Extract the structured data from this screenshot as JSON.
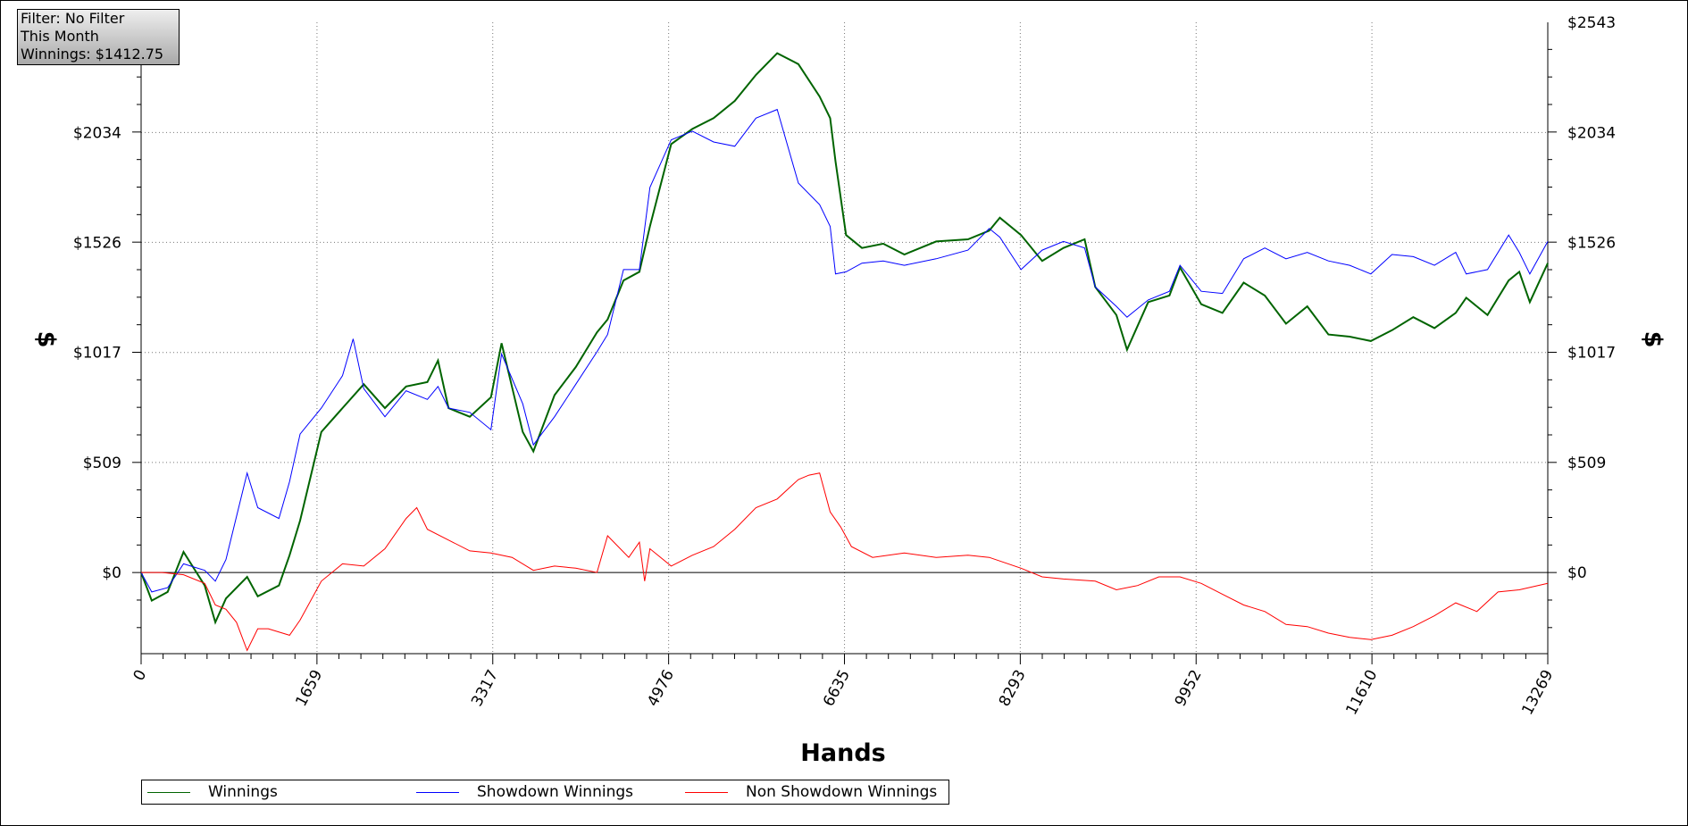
{
  "info_box": {
    "filter": "Filter: No Filter",
    "period": "This Month",
    "winnings": "Winnings: $1412.75"
  },
  "legend": [
    {
      "name": "Winnings",
      "color": "#006400"
    },
    {
      "name": "Showdown Winnings",
      "color": "#0000ff"
    },
    {
      "name": "Non Showdown Winnings",
      "color": "#ff0000"
    }
  ],
  "chart_data": {
    "type": "line",
    "xlabel": "Hands",
    "ylabel": "$",
    "xlim": [
      0,
      13269
    ],
    "ylim": [
      -375,
      2543
    ],
    "x_ticks": [
      0,
      1659,
      3317,
      4976,
      6635,
      8293,
      9952,
      11610,
      13269
    ],
    "x_tick_labels": [
      "0",
      "1659",
      "3317",
      "4976",
      "6635",
      "8293",
      "9952",
      "11610",
      "13269"
    ],
    "y_ticks": [
      0,
      509,
      1017,
      1526,
      2034,
      2543
    ],
    "y_tick_labels": [
      "$0",
      "$509",
      "$1017",
      "$1526",
      "$2034",
      "$2543"
    ],
    "grid": true,
    "legend_position": "bottom-left",
    "series": [
      {
        "name": "Winnings",
        "color": "#006400",
        "x": [
          0,
          100,
          250,
          400,
          600,
          700,
          800,
          1000,
          1100,
          1300,
          1400,
          1500,
          1700,
          1900,
          2100,
          2300,
          2500,
          2700,
          2800,
          2900,
          3100,
          3300,
          3400,
          3600,
          3700,
          3900,
          4100,
          4300,
          4400,
          4550,
          4700,
          4800,
          5000,
          5200,
          5400,
          5600,
          5800,
          6000,
          6200,
          6400,
          6500,
          6550,
          6650,
          6800,
          7000,
          7200,
          7500,
          7800,
          8000,
          8100,
          8300,
          8500,
          8700,
          8900,
          9000,
          9200,
          9300,
          9500,
          9700,
          9800,
          10000,
          10200,
          10400,
          10600,
          10800,
          11000,
          11200,
          11400,
          11600,
          11800,
          12000,
          12200,
          12400,
          12500,
          12700,
          12900,
          13000,
          13100,
          13269
        ],
        "y": [
          0,
          -130,
          -90,
          95,
          -60,
          -230,
          -120,
          -20,
          -110,
          -60,
          80,
          240,
          650,
          760,
          870,
          760,
          860,
          880,
          980,
          760,
          720,
          810,
          1060,
          650,
          560,
          820,
          950,
          1110,
          1170,
          1350,
          1390,
          1600,
          1980,
          2050,
          2100,
          2180,
          2300,
          2400,
          2350,
          2200,
          2100,
          1900,
          1560,
          1500,
          1520,
          1470,
          1530,
          1540,
          1580,
          1640,
          1560,
          1440,
          1500,
          1540,
          1320,
          1190,
          1030,
          1250,
          1280,
          1410,
          1240,
          1200,
          1340,
          1280,
          1150,
          1230,
          1100,
          1090,
          1070,
          1120,
          1180,
          1130,
          1200,
          1270,
          1190,
          1350,
          1390,
          1250,
          1430
        ]
      },
      {
        "name": "Showdown Winnings",
        "color": "#0000ff",
        "x": [
          0,
          100,
          250,
          400,
          600,
          700,
          800,
          1000,
          1100,
          1300,
          1400,
          1500,
          1700,
          1900,
          2000,
          2100,
          2300,
          2500,
          2700,
          2800,
          2900,
          3100,
          3300,
          3400,
          3600,
          3700,
          3900,
          4100,
          4300,
          4400,
          4550,
          4700,
          4800,
          5000,
          5200,
          5400,
          5600,
          5800,
          6000,
          6200,
          6400,
          6500,
          6550,
          6650,
          6800,
          7000,
          7200,
          7500,
          7800,
          8000,
          8100,
          8300,
          8500,
          8700,
          8900,
          9000,
          9200,
          9300,
          9500,
          9700,
          9800,
          10000,
          10200,
          10400,
          10600,
          10800,
          11000,
          11200,
          11400,
          11600,
          11800,
          12000,
          12200,
          12400,
          12500,
          12700,
          12900,
          13000,
          13100,
          13269
        ],
        "y": [
          0,
          -90,
          -70,
          40,
          10,
          -40,
          60,
          460,
          300,
          250,
          420,
          640,
          760,
          910,
          1080,
          850,
          720,
          840,
          800,
          860,
          760,
          740,
          660,
          1010,
          780,
          590,
          720,
          870,
          1020,
          1100,
          1400,
          1400,
          1780,
          2000,
          2040,
          1990,
          1970,
          2100,
          2140,
          1800,
          1700,
          1600,
          1380,
          1390,
          1430,
          1440,
          1420,
          1450,
          1490,
          1590,
          1550,
          1400,
          1490,
          1530,
          1500,
          1320,
          1230,
          1180,
          1260,
          1300,
          1420,
          1300,
          1290,
          1450,
          1500,
          1450,
          1480,
          1440,
          1420,
          1380,
          1470,
          1460,
          1420,
          1480,
          1380,
          1400,
          1560,
          1480,
          1380,
          1530
        ]
      },
      {
        "name": "Non Showdown Winnings",
        "color": "#ff0000",
        "x": [
          0,
          200,
          400,
          600,
          700,
          800,
          900,
          1000,
          1100,
          1200,
          1400,
          1500,
          1700,
          1900,
          2100,
          2300,
          2500,
          2600,
          2700,
          2900,
          3100,
          3300,
          3500,
          3700,
          3900,
          4100,
          4300,
          4400,
          4600,
          4700,
          4750,
          4800,
          5000,
          5200,
          5400,
          5600,
          5800,
          6000,
          6200,
          6300,
          6400,
          6500,
          6600,
          6700,
          6900,
          7200,
          7500,
          7800,
          8000,
          8300,
          8500,
          8700,
          9000,
          9200,
          9400,
          9600,
          9800,
          10000,
          10200,
          10400,
          10600,
          10800,
          11000,
          11200,
          11400,
          11600,
          11800,
          12000,
          12200,
          12400,
          12600,
          12800,
          13000,
          13269
        ],
        "y": [
          0,
          0,
          -10,
          -50,
          -150,
          -170,
          -230,
          -360,
          -260,
          -260,
          -290,
          -220,
          -40,
          40,
          30,
          110,
          250,
          300,
          200,
          150,
          100,
          90,
          70,
          10,
          30,
          20,
          0,
          170,
          70,
          140,
          -40,
          110,
          30,
          80,
          120,
          200,
          300,
          340,
          430,
          450,
          460,
          280,
          210,
          120,
          70,
          90,
          70,
          80,
          70,
          20,
          -20,
          -30,
          -40,
          -80,
          -60,
          -20,
          -20,
          -50,
          -100,
          -150,
          -180,
          -240,
          -250,
          -280,
          -300,
          -310,
          -290,
          -250,
          -200,
          -140,
          -180,
          -90,
          -80,
          -50
        ]
      }
    ]
  }
}
